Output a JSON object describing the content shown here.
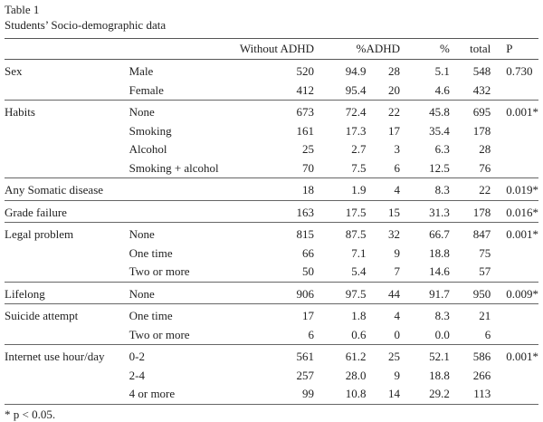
{
  "caption": {
    "label": "Table 1",
    "title": "Students’ Socio-demographic data"
  },
  "columns": [
    "",
    "",
    "Without ADHD",
    "%",
    "ADHD",
    "%",
    "total",
    "P"
  ],
  "groups": [
    {
      "rows": [
        [
          "Sex",
          "Male",
          "520",
          "94.9",
          "28",
          "5.1",
          "548",
          "0.730"
        ],
        [
          "",
          "Female",
          "412",
          "95.4",
          "20",
          "4.6",
          "432",
          ""
        ]
      ]
    },
    {
      "rows": [
        [
          "Habits",
          "None",
          "673",
          "72.4",
          "22",
          "45.8",
          "695",
          "0.001*"
        ],
        [
          "",
          "Smoking",
          "161",
          "17.3",
          "17",
          "35.4",
          "178",
          ""
        ],
        [
          "",
          "Alcohol",
          "25",
          "2.7",
          "3",
          "6.3",
          "28",
          ""
        ],
        [
          "",
          "Smoking + alcohol",
          "70",
          "7.5",
          "6",
          "12.5",
          "76",
          ""
        ]
      ]
    },
    {
      "rows": [
        [
          "Any Somatic disease",
          "",
          "18",
          "1.9",
          "4",
          "8.3",
          "22",
          "0.019*"
        ]
      ]
    },
    {
      "rows": [
        [
          "Grade failure",
          "",
          "163",
          "17.5",
          "15",
          "31.3",
          "178",
          "0.016*"
        ]
      ]
    },
    {
      "rows": [
        [
          "Legal problem",
          "None",
          "815",
          "87.5",
          "32",
          "66.7",
          "847",
          "0.001*"
        ],
        [
          "",
          "One time",
          "66",
          "7.1",
          "9",
          "18.8",
          "75",
          ""
        ],
        [
          "",
          "Two or more",
          "50",
          "5.4",
          "7",
          "14.6",
          "57",
          ""
        ]
      ]
    },
    {
      "rows": [
        [
          "Lifelong",
          "None",
          "906",
          "97.5",
          "44",
          "91.7",
          "950",
          "0.009*"
        ]
      ]
    },
    {
      "rows": [
        [
          "Suicide attempt",
          "One time",
          "17",
          "1.8",
          "4",
          "8.3",
          "21",
          ""
        ],
        [
          "",
          "Two or more",
          "6",
          "0.6",
          "0",
          "0.0",
          "6",
          ""
        ]
      ]
    },
    {
      "rows": [
        [
          "Internet use hour/day",
          "0-2",
          "561",
          "61.2",
          "25",
          "52.1",
          "586",
          "0.001*"
        ],
        [
          "",
          "2-4",
          "257",
          "28.0",
          "9",
          "18.8",
          "266",
          ""
        ],
        [
          "",
          "4 or more",
          "99",
          "10.8",
          "14",
          "29.2",
          "113",
          ""
        ]
      ]
    }
  ],
  "footnote": "* p < 0.05."
}
